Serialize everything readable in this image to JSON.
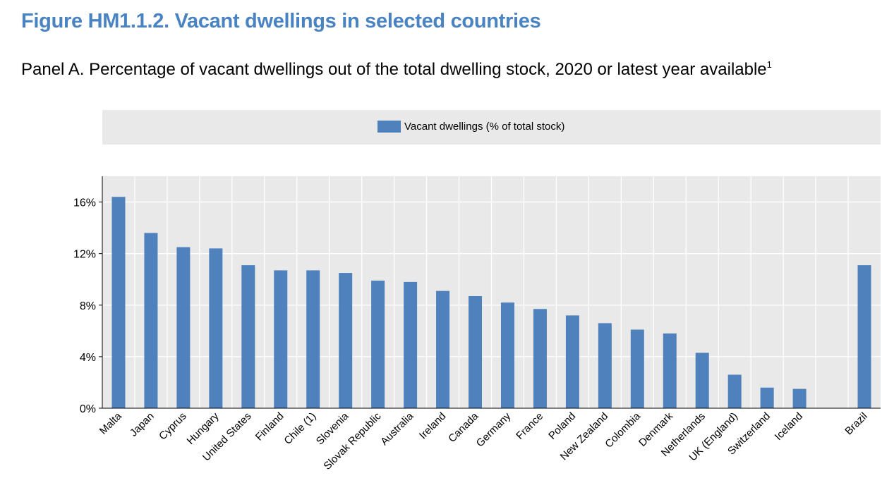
{
  "figure_title": "Figure HM1.1.2. Vacant dwellings in selected countries",
  "panel_title": "Panel A. Percentage of vacant dwellings out of the total dwelling stock, 2020 or latest year available",
  "panel_title_sup": "1",
  "chart_data": {
    "type": "bar",
    "categories": [
      "Malta",
      "Japan",
      "Cyprus",
      "Hungary",
      "United States",
      "Finland",
      "Chile (1)",
      "Slovenia",
      "Slovak Republic",
      "Australia",
      "Ireland",
      "Canada",
      "Germany",
      "France",
      "Poland",
      "New Zealand",
      "Colombia",
      "Denmark",
      "Netherlands",
      "UK (England)",
      "Switzerland",
      "Iceland",
      "",
      "Brazil"
    ],
    "series": [
      {
        "name": "Vacant dwellings (% of total stock)",
        "values": [
          16.4,
          13.6,
          12.5,
          12.4,
          11.1,
          10.7,
          10.7,
          10.5,
          9.9,
          9.8,
          9.1,
          8.7,
          8.2,
          7.7,
          7.2,
          6.6,
          6.1,
          5.8,
          4.3,
          2.6,
          1.6,
          1.5,
          null,
          11.1
        ],
        "color": "#4f81bd"
      }
    ],
    "ylim": [
      0,
      18
    ],
    "yticks": [
      0,
      4,
      8,
      12,
      16
    ],
    "ytick_labels": [
      "0%",
      "4%",
      "8%",
      "12%",
      "16%"
    ],
    "legend_position": "top",
    "grid": true,
    "plot_background": "#e9e9e9",
    "grid_color": "#ffffff"
  }
}
